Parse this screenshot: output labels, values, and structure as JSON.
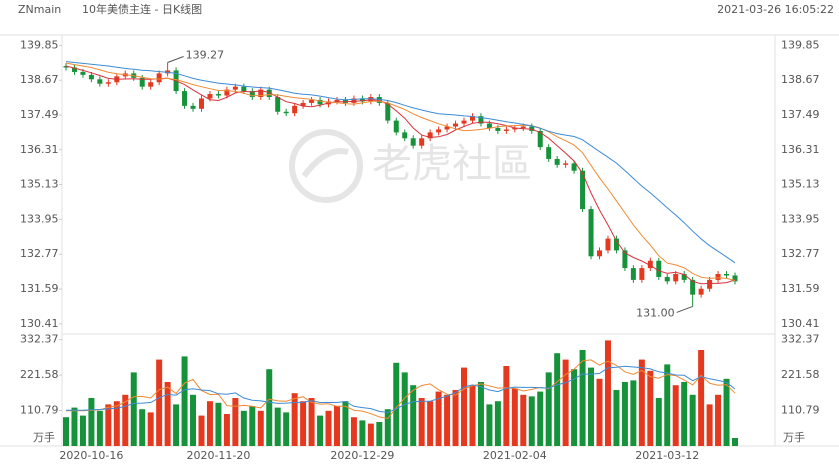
{
  "header": {
    "symbol": "ZNmain",
    "title": "10年美债主连 - 日K线图",
    "timestamp": "2021-03-26 16:05:22"
  },
  "watermark": "老虎社區",
  "chart_data": [
    {
      "type": "candlestick",
      "categories": [
        null,
        null,
        null,
        "2020-10-16",
        null,
        null,
        null,
        null,
        null,
        null,
        null,
        null,
        null,
        null,
        null,
        null,
        null,
        null,
        "2020-11-20",
        null,
        null,
        null,
        null,
        null,
        null,
        null,
        null,
        null,
        null,
        null,
        null,
        null,
        null,
        null,
        null,
        "2020-12-29",
        null,
        null,
        null,
        null,
        null,
        null,
        null,
        null,
        null,
        null,
        null,
        null,
        null,
        null,
        null,
        null,
        null,
        "2021-02-04",
        null,
        null,
        null,
        null,
        null,
        null,
        null,
        null,
        null,
        null,
        null,
        null,
        null,
        null,
        null,
        null,
        null,
        "2021-03-12",
        null,
        null,
        null,
        null,
        null,
        null,
        null,
        null
      ],
      "open": [
        139.15,
        139.1,
        138.95,
        138.85,
        138.7,
        138.55,
        138.6,
        138.8,
        138.9,
        138.75,
        138.45,
        138.6,
        138.9,
        139.0,
        138.3,
        137.8,
        137.7,
        138.05,
        138.2,
        138.15,
        138.35,
        138.45,
        138.3,
        138.1,
        138.35,
        138.1,
        137.6,
        137.55,
        137.8,
        137.9,
        138.0,
        137.85,
        137.95,
        138.0,
        137.9,
        138.05,
        137.95,
        138.1,
        137.9,
        137.3,
        136.9,
        136.7,
        136.45,
        136.7,
        136.9,
        137.0,
        137.1,
        137.2,
        137.3,
        137.45,
        137.2,
        137.05,
        136.95,
        137.0,
        137.05,
        137.1,
        136.95,
        136.4,
        136.0,
        135.8,
        135.85,
        135.6,
        134.3,
        132.7,
        132.9,
        133.3,
        132.9,
        132.3,
        131.9,
        132.3,
        132.55,
        132.0,
        131.85,
        132.1,
        131.9,
        131.4,
        131.6,
        131.9,
        132.1,
        132.05
      ],
      "high": [
        139.25,
        139.2,
        139.05,
        138.95,
        138.8,
        138.7,
        138.9,
        139.0,
        139.0,
        138.85,
        138.7,
        139.0,
        139.27,
        139.1,
        138.4,
        137.9,
        138.15,
        138.3,
        138.3,
        138.45,
        138.55,
        138.55,
        138.4,
        138.45,
        138.45,
        138.2,
        137.7,
        137.9,
        138.0,
        138.1,
        138.1,
        138.05,
        138.1,
        138.1,
        138.15,
        138.15,
        138.2,
        138.2,
        138.0,
        137.4,
        137.0,
        136.8,
        136.8,
        137.0,
        137.1,
        137.2,
        137.3,
        137.4,
        137.55,
        137.55,
        137.3,
        137.15,
        137.1,
        137.15,
        137.2,
        137.2,
        137.05,
        136.5,
        136.1,
        135.95,
        135.95,
        135.7,
        134.4,
        133.0,
        133.4,
        133.4,
        133.0,
        132.4,
        132.4,
        132.65,
        132.65,
        132.1,
        132.2,
        132.2,
        132.0,
        131.7,
        132.0,
        132.2,
        132.2,
        132.15
      ],
      "low": [
        139.0,
        138.85,
        138.75,
        138.6,
        138.45,
        138.45,
        138.5,
        138.7,
        138.65,
        138.35,
        138.35,
        138.5,
        138.8,
        138.2,
        137.7,
        137.6,
        137.6,
        137.95,
        138.05,
        138.05,
        138.25,
        138.2,
        138.0,
        138.0,
        138.0,
        137.5,
        137.45,
        137.45,
        137.7,
        137.8,
        137.75,
        137.75,
        137.85,
        137.8,
        137.8,
        137.85,
        137.85,
        137.8,
        137.2,
        136.8,
        136.6,
        136.35,
        136.35,
        136.6,
        136.8,
        136.9,
        137.0,
        137.1,
        137.2,
        137.1,
        136.95,
        136.85,
        136.85,
        136.9,
        136.95,
        136.85,
        136.3,
        135.9,
        135.7,
        135.7,
        135.5,
        134.2,
        132.6,
        132.6,
        132.8,
        132.8,
        132.2,
        131.8,
        131.8,
        132.2,
        131.9,
        131.75,
        131.75,
        131.8,
        131.0,
        131.3,
        131.5,
        131.8,
        131.95,
        131.75
      ],
      "close": [
        139.1,
        138.95,
        138.85,
        138.7,
        138.55,
        138.6,
        138.8,
        138.9,
        138.75,
        138.45,
        138.6,
        138.9,
        139.0,
        138.3,
        137.8,
        137.7,
        138.05,
        138.2,
        138.15,
        138.35,
        138.45,
        138.3,
        138.1,
        138.35,
        138.1,
        137.6,
        137.55,
        137.8,
        137.9,
        138.0,
        137.85,
        137.95,
        138.0,
        137.9,
        138.05,
        137.95,
        138.1,
        137.9,
        137.3,
        136.9,
        136.7,
        136.45,
        136.7,
        136.9,
        137.0,
        137.1,
        137.2,
        137.3,
        137.45,
        137.2,
        137.05,
        136.95,
        137.0,
        137.05,
        137.1,
        136.95,
        136.4,
        136.0,
        135.8,
        135.85,
        135.6,
        134.3,
        132.7,
        132.9,
        133.3,
        132.9,
        132.3,
        131.9,
        132.3,
        132.55,
        132.0,
        131.85,
        132.1,
        131.9,
        131.4,
        131.6,
        131.9,
        132.1,
        132.05,
        131.85
      ],
      "up_color": "#e5391f",
      "down_color": "#16923a",
      "lines": [
        {
          "color": "#d8323b",
          "values": [
            139.15,
            139.08,
            139.0,
            138.92,
            138.83,
            138.73,
            138.7,
            138.71,
            138.72,
            138.7,
            138.7,
            138.72,
            138.74,
            138.65,
            138.52,
            138.34,
            138.17,
            138.01,
            137.98,
            138.09,
            138.24,
            138.29,
            138.27,
            138.31,
            138.26,
            138.09,
            137.94,
            137.88,
            137.79,
            137.77,
            137.82,
            137.9,
            137.94,
            137.94,
            137.95,
            137.97,
            138.0,
            137.98,
            137.86,
            137.63,
            137.38,
            137.05,
            136.81,
            136.73,
            136.75,
            136.83,
            136.98,
            137.1,
            137.21,
            137.25,
            137.24,
            137.19,
            137.13,
            137.05,
            137.03,
            137.01,
            136.9,
            136.7,
            136.45,
            136.2,
            135.93,
            135.51,
            134.85,
            134.27,
            133.76,
            133.22,
            132.82,
            132.66,
            132.54,
            132.39,
            132.21,
            132.12,
            132.16,
            132.08,
            131.85,
            131.77,
            131.78,
            131.78,
            131.81,
            131.9
          ]
        },
        {
          "color": "#f08a33",
          "values": [
            139.25,
            139.2,
            139.15,
            139.1,
            139.02,
            138.94,
            138.89,
            138.86,
            138.82,
            138.77,
            138.72,
            138.71,
            138.73,
            138.69,
            138.61,
            138.52,
            138.45,
            138.38,
            138.32,
            138.31,
            138.29,
            138.23,
            138.14,
            138.15,
            138.18,
            138.17,
            138.12,
            138.08,
            138.05,
            138.02,
            137.96,
            137.92,
            137.91,
            137.87,
            137.86,
            137.9,
            137.95,
            137.96,
            137.9,
            137.79,
            137.68,
            137.53,
            137.4,
            137.3,
            137.19,
            137.11,
            137.02,
            136.96,
            136.97,
            137.0,
            137.04,
            137.09,
            137.12,
            137.13,
            137.14,
            137.13,
            137.05,
            136.92,
            136.75,
            136.62,
            136.47,
            136.21,
            135.78,
            135.36,
            134.98,
            134.58,
            134.17,
            133.76,
            133.41,
            133.08,
            132.72,
            132.47,
            132.41,
            132.31,
            132.12,
            131.99,
            131.95,
            131.97,
            131.95,
            131.88
          ]
        },
        {
          "color": "#3d8bd6",
          "values": [
            139.3,
            139.27,
            139.24,
            139.21,
            139.18,
            139.15,
            139.11,
            139.07,
            139.04,
            139.01,
            138.99,
            138.96,
            138.94,
            138.9,
            138.82,
            138.73,
            138.67,
            138.62,
            138.57,
            138.54,
            138.51,
            138.47,
            138.44,
            138.42,
            138.4,
            138.35,
            138.29,
            138.23,
            138.19,
            138.17,
            138.13,
            138.08,
            138.03,
            138.01,
            138.02,
            138.04,
            138.04,
            138.02,
            137.98,
            137.91,
            137.82,
            137.73,
            137.66,
            137.59,
            137.53,
            137.51,
            137.49,
            137.46,
            137.44,
            137.4,
            137.36,
            137.31,
            137.26,
            137.22,
            137.17,
            137.12,
            137.04,
            136.94,
            136.86,
            136.81,
            136.76,
            136.65,
            136.45,
            136.25,
            136.06,
            135.86,
            135.61,
            135.34,
            135.08,
            134.85,
            134.6,
            134.34,
            134.1,
            133.84,
            133.55,
            133.29,
            133.06,
            132.87,
            132.68,
            132.48
          ]
        }
      ],
      "ylim": [
        130.1,
        140.1
      ],
      "yticks": [
        139.85,
        138.67,
        137.49,
        136.31,
        135.13,
        133.95,
        132.77,
        131.59,
        130.41
      ],
      "max_label": {
        "value": 139.27,
        "label": "139.27"
      },
      "min_label": {
        "value": 131.0,
        "label": "131.00"
      }
    },
    {
      "type": "bar",
      "values": [
        90,
        120,
        95,
        150,
        110,
        130,
        140,
        160,
        230,
        115,
        105,
        270,
        200,
        130,
        280,
        160,
        95,
        140,
        135,
        100,
        150,
        110,
        125,
        110,
        240,
        120,
        105,
        165,
        140,
        150,
        95,
        110,
        125,
        140,
        90,
        80,
        70,
        75,
        115,
        260,
        230,
        190,
        150,
        140,
        170,
        160,
        175,
        245,
        190,
        200,
        130,
        140,
        250,
        180,
        160,
        155,
        170,
        230,
        290,
        270,
        240,
        300,
        245,
        210,
        330,
        175,
        200,
        205,
        270,
        235,
        150,
        255,
        190,
        200,
        160,
        300,
        130,
        160,
        210,
        25
      ],
      "lines": [
        {
          "color": "#f08a33",
          "values": [
            110,
            110,
            110,
            112,
            113,
            121,
            125,
            138,
            154,
            155,
            150,
            176,
            184,
            164,
            197,
            208,
            173,
            161,
            162,
            126,
            124,
            127,
            124,
            119,
            147,
            141,
            140,
            148,
            154,
            136,
            131,
            132,
            124,
            124,
            112,
            109,
            101,
            91,
            86,
            120,
            150,
            174,
            189,
            194,
            176,
            162,
            159,
            178,
            188,
            194,
            188,
            181,
            182,
            180,
            172,
            177,
            183,
            179,
            201,
            223,
            240,
            266,
            269,
            253,
            265,
            252,
            232,
            224,
            236,
            217,
            212,
            223,
            220,
            206,
            191,
            221,
            196,
            190,
            192,
            165
          ]
        },
        {
          "color": "#3d8bd6",
          "values": [
            112,
            112,
            112,
            113,
            114,
            116,
            118,
            124,
            133,
            134,
            136,
            151,
            161,
            159,
            176,
            179,
            175,
            173,
            163,
            162,
            166,
            150,
            143,
            141,
            137,
            133,
            134,
            136,
            137,
            142,
            136,
            136,
            136,
            139,
            124,
            120,
            117,
            108,
            105,
            116,
            130,
            138,
            140,
            140,
            148,
            156,
            167,
            184,
            191,
            185,
            175,
            170,
            180,
            184,
            183,
            183,
            182,
            181,
            191,
            198,
            209,
            225,
            224,
            227,
            244,
            246,
            249,
            247,
            245,
            241,
            232,
            228,
            222,
            221,
            204,
            217,
            210,
            205,
            199,
            178
          ]
        }
      ],
      "ylim": [
        0,
        350
      ],
      "yticks": [
        110.79,
        221.58,
        332.37
      ],
      "unit_label": "万手"
    }
  ]
}
